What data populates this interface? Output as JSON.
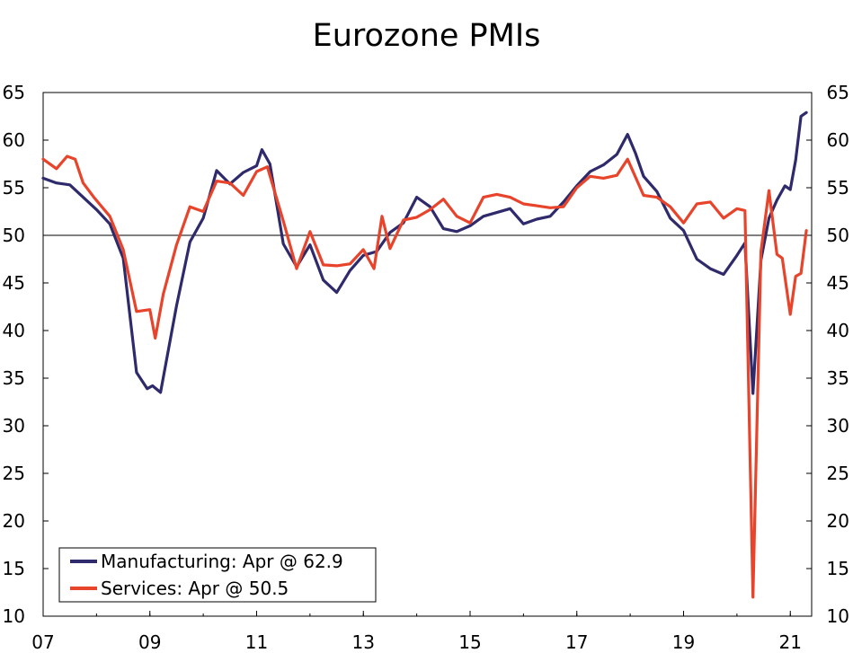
{
  "chart_data": {
    "type": "line",
    "title": "Eurozone PMIs",
    "xlabel": "",
    "ylabel": "",
    "ylim": [
      10,
      65
    ],
    "y_ticks": [
      10,
      15,
      20,
      25,
      30,
      35,
      40,
      45,
      50,
      55,
      60,
      65
    ],
    "x_range": [
      2007.0,
      2021.4
    ],
    "x_ticks": [
      {
        "value": 2007,
        "label": "07"
      },
      {
        "value": 2009,
        "label": "09"
      },
      {
        "value": 2011,
        "label": "11"
      },
      {
        "value": 2013,
        "label": "13"
      },
      {
        "value": 2015,
        "label": "15"
      },
      {
        "value": 2017,
        "label": "17"
      },
      {
        "value": 2019,
        "label": "19"
      },
      {
        "value": 2021,
        "label": "21"
      }
    ],
    "reference_line": 50,
    "grid": false,
    "legend_position": "bottom-left",
    "series": [
      {
        "name": "Manufacturing: Apr @ 62.9",
        "color": "#2e2a6b",
        "x": [
          2007.0,
          2007.25,
          2007.5,
          2007.75,
          2008.0,
          2008.25,
          2008.5,
          2008.75,
          2008.95,
          2009.05,
          2009.2,
          2009.5,
          2009.75,
          2010.0,
          2010.25,
          2010.5,
          2010.75,
          2011.0,
          2011.1,
          2011.25,
          2011.5,
          2011.75,
          2012.0,
          2012.25,
          2012.5,
          2012.75,
          2013.0,
          2013.25,
          2013.5,
          2013.75,
          2014.0,
          2014.25,
          2014.5,
          2014.75,
          2015.0,
          2015.25,
          2015.5,
          2015.75,
          2016.0,
          2016.25,
          2016.5,
          2016.75,
          2017.0,
          2017.25,
          2017.5,
          2017.75,
          2017.95,
          2018.1,
          2018.25,
          2018.5,
          2018.75,
          2019.0,
          2019.25,
          2019.5,
          2019.75,
          2020.0,
          2020.15,
          2020.3,
          2020.45,
          2020.6,
          2020.75,
          2020.9,
          2021.0,
          2021.1,
          2021.2,
          2021.3
        ],
        "values": [
          56.0,
          55.5,
          55.3,
          54.0,
          52.7,
          51.2,
          47.6,
          35.6,
          33.9,
          34.2,
          33.5,
          42.6,
          49.3,
          51.8,
          56.8,
          55.4,
          56.6,
          57.3,
          59.0,
          57.5,
          49.1,
          46.7,
          49.0,
          45.3,
          44.0,
          46.3,
          47.9,
          48.3,
          50.3,
          51.3,
          54.0,
          53.0,
          50.7,
          50.4,
          51.0,
          52.0,
          52.4,
          52.8,
          51.2,
          51.7,
          52.0,
          53.5,
          55.2,
          56.7,
          57.4,
          58.5,
          60.6,
          58.6,
          56.2,
          54.6,
          51.8,
          50.5,
          47.5,
          46.5,
          45.9,
          47.9,
          49.2,
          33.4,
          47.4,
          51.8,
          53.7,
          55.2,
          54.8,
          57.9,
          62.5,
          62.9
        ]
      },
      {
        "name": "Services: Apr @ 50.5",
        "color": "#e8442b",
        "x": [
          2007.0,
          2007.25,
          2007.45,
          2007.6,
          2007.75,
          2007.95,
          2008.25,
          2008.5,
          2008.75,
          2009.0,
          2009.1,
          2009.25,
          2009.5,
          2009.75,
          2010.0,
          2010.25,
          2010.5,
          2010.75,
          2011.0,
          2011.2,
          2011.5,
          2011.75,
          2012.0,
          2012.25,
          2012.5,
          2012.75,
          2013.0,
          2013.2,
          2013.35,
          2013.5,
          2013.75,
          2014.0,
          2014.25,
          2014.5,
          2014.75,
          2015.0,
          2015.25,
          2015.5,
          2015.75,
          2016.0,
          2016.25,
          2016.5,
          2016.75,
          2017.0,
          2017.25,
          2017.5,
          2017.75,
          2017.95,
          2018.25,
          2018.5,
          2018.75,
          2019.0,
          2019.25,
          2019.5,
          2019.75,
          2020.0,
          2020.15,
          2020.3,
          2020.45,
          2020.6,
          2020.75,
          2020.85,
          2021.0,
          2021.1,
          2021.2,
          2021.3
        ],
        "values": [
          58.0,
          57.0,
          58.3,
          58.0,
          55.5,
          54.0,
          52.0,
          48.5,
          42.0,
          42.2,
          39.2,
          43.8,
          49.0,
          53.0,
          52.5,
          55.7,
          55.5,
          54.2,
          56.7,
          57.2,
          51.5,
          46.5,
          50.4,
          46.9,
          46.8,
          47.0,
          48.5,
          46.5,
          52.0,
          48.6,
          51.6,
          51.9,
          52.7,
          53.8,
          52.0,
          51.3,
          54.0,
          54.3,
          54.0,
          53.3,
          53.1,
          52.9,
          53.0,
          55.0,
          56.2,
          56.0,
          56.3,
          58.0,
          54.2,
          54.0,
          53.0,
          51.3,
          53.3,
          53.5,
          51.8,
          52.8,
          52.6,
          12.0,
          48.3,
          54.7,
          48.0,
          47.6,
          41.7,
          45.7,
          46.0,
          50.5
        ]
      }
    ]
  }
}
